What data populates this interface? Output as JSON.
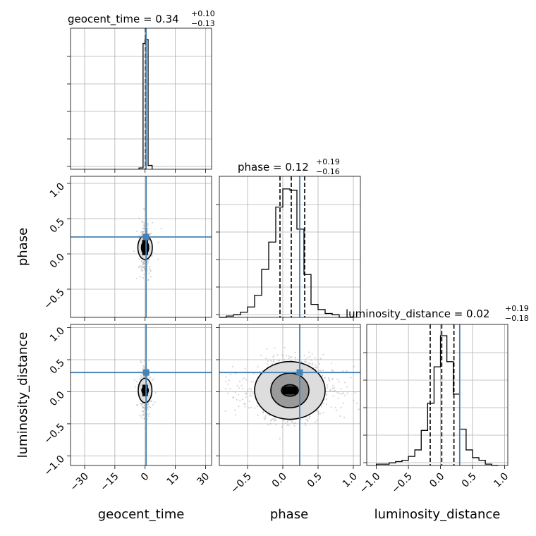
{
  "chart_data": {
    "type": "corner",
    "truth_color": "#4682b4",
    "parameters": [
      {
        "name": "geocent_time",
        "title": {
          "main": "geocent_time = 0.34",
          "sup": "+0.10",
          "sub": "−0.13"
        },
        "range": [
          -37,
          33
        ],
        "ticks": [
          -30,
          -15,
          0,
          15,
          30
        ],
        "tick_labels": [
          "−30",
          "−15",
          "0",
          "15",
          "30"
        ],
        "truth": 0.5,
        "quantiles": [
          0.21,
          0.34,
          0.44
        ],
        "histogram": {
          "edges": [
            -3,
            -1,
            0,
            1.5,
            3.5
          ],
          "counts": [
            0.01,
            0.97,
            1.0,
            0.03
          ]
        }
      },
      {
        "name": "phase",
        "title": {
          "main": "phase = 0.12",
          "sup": "+0.19",
          "sub": "−0.16"
        },
        "range": [
          -0.9,
          1.1
        ],
        "ticks": [
          -0.5,
          0.0,
          0.5,
          1.0
        ],
        "tick_labels": [
          "−0.5",
          "0.0",
          "0.5",
          "1.0"
        ],
        "truth": 0.24,
        "quantiles": [
          -0.04,
          0.12,
          0.31
        ],
        "histogram": {
          "edges": [
            -0.9,
            -0.8,
            -0.7,
            -0.6,
            -0.5,
            -0.4,
            -0.3,
            -0.2,
            -0.1,
            0.0,
            0.1,
            0.2,
            0.3,
            0.4,
            0.5,
            0.6,
            0.7,
            0.8,
            0.9,
            1.0
          ],
          "counts": [
            0.0,
            0.01,
            0.02,
            0.04,
            0.08,
            0.17,
            0.37,
            0.58,
            0.85,
            0.99,
            0.98,
            0.68,
            0.33,
            0.1,
            0.06,
            0.03,
            0.02,
            0.0,
            0.0
          ]
        }
      },
      {
        "name": "luminosity_distance",
        "title": {
          "main": "luminosity_distance = 0.02",
          "sup": "+0.19",
          "sub": "−0.18"
        },
        "range": [
          -1.15,
          1.05
        ],
        "ticks": [
          -1.0,
          -0.5,
          0.0,
          0.5,
          1.0
        ],
        "tick_labels": [
          "−1.0",
          "−0.5",
          "0.0",
          "0.5",
          "1.0"
        ],
        "truth": 0.3,
        "quantiles": [
          -0.16,
          0.02,
          0.21
        ],
        "histogram": {
          "edges": [
            -1.0,
            -0.9,
            -0.8,
            -0.7,
            -0.6,
            -0.5,
            -0.4,
            -0.3,
            -0.2,
            -0.1,
            0.0,
            0.1,
            0.2,
            0.3,
            0.4,
            0.5,
            0.6,
            0.7,
            0.8,
            0.9
          ],
          "counts": [
            0.01,
            0.01,
            0.02,
            0.03,
            0.04,
            0.07,
            0.12,
            0.27,
            0.48,
            0.76,
            1.0,
            0.8,
            0.55,
            0.28,
            0.12,
            0.06,
            0.04,
            0.01,
            0.0
          ]
        }
      }
    ],
    "pairs": [
      {
        "x": "geocent_time",
        "y": "phase",
        "center": [
          0,
          0.09
        ],
        "spread": [
          1.2,
          0.18
        ],
        "n_scatter": 360,
        "contours": [
          [
            1.8,
            0.09
          ],
          [
            3.6,
            0.17
          ]
        ],
        "core": [
          1.6,
          0.18
        ]
      },
      {
        "x": "geocent_time",
        "y": "luminosity_distance",
        "center": [
          0,
          0.02
        ],
        "spread": [
          1.2,
          0.2
        ],
        "n_scatter": 360,
        "contours": [
          [
            1.6,
            0.06
          ],
          [
            3.4,
            0.19
          ]
        ],
        "core": [
          1.5,
          0.15
        ]
      },
      {
        "x": "phase",
        "y": "luminosity_distance",
        "center": [
          0.1,
          0.02
        ],
        "spread": [
          0.19,
          0.2
        ],
        "n_scatter": 2600,
        "contours": [
          [
            0.12,
            0.09
          ],
          [
            0.27,
            0.27
          ],
          [
            0.5,
            0.45
          ]
        ],
        "core": [
          0.12,
          0.1
        ]
      }
    ]
  }
}
